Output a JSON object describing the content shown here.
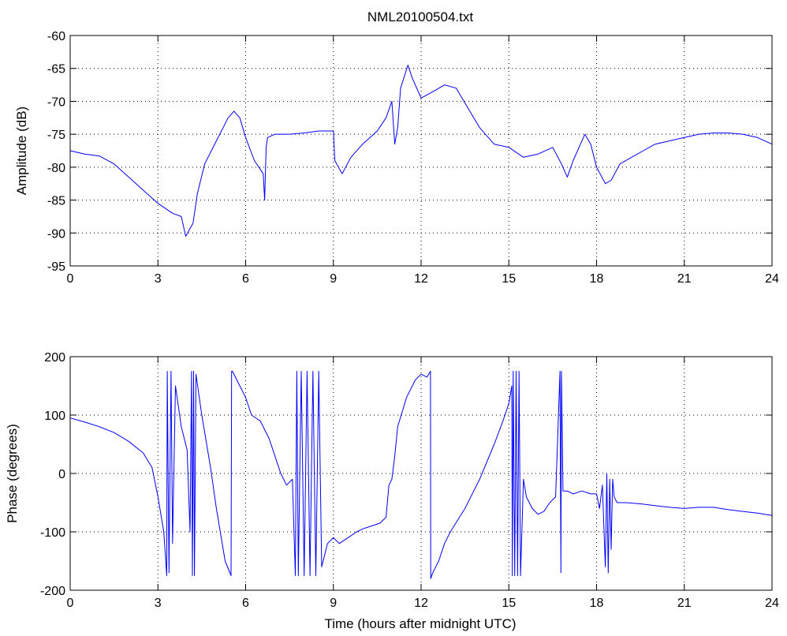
{
  "colors": {
    "trace": "#0000ff",
    "axes": "#000000",
    "background": "#ffffff"
  },
  "chart_data": [
    {
      "type": "line",
      "title": "NML20100504.txt",
      "xlabel": "",
      "ylabel": "Amplitude (dB)",
      "xlim": [
        0,
        24
      ],
      "ylim": [
        -95,
        -60
      ],
      "xticks": [
        0,
        3,
        6,
        9,
        12,
        15,
        18,
        21,
        24
      ],
      "yticks": [
        -95,
        -90,
        -85,
        -80,
        -75,
        -70,
        -65,
        -60
      ],
      "grid": true,
      "series": [
        {
          "x": [
            0,
            0.5,
            1,
            1.5,
            2,
            2.5,
            3,
            3.5,
            3.8,
            3.95,
            4.2,
            4.35,
            4.6,
            5.0,
            5.4,
            5.6,
            5.8,
            6.0,
            6.3,
            6.6,
            6.65,
            6.7,
            6.75,
            7,
            7.5,
            8,
            8.5,
            9,
            9.05,
            9.3,
            9.6,
            10,
            10.5,
            10.8,
            11,
            11.1,
            11.2,
            11.3,
            11.55,
            11.7,
            12,
            12.5,
            12.8,
            13.2,
            13.6,
            14,
            14.5,
            15,
            15.5,
            16,
            16.5,
            16.8,
            17,
            17.2,
            17.4,
            17.6,
            17.8,
            18,
            18.3,
            18.5,
            18.8,
            19.2,
            19.6,
            20,
            20.5,
            21,
            21.5,
            22,
            22.5,
            23,
            23.5,
            24
          ],
          "y": [
            -77.5,
            -78,
            -78.3,
            -79.5,
            -81.5,
            -83.5,
            -85.5,
            -87,
            -87.5,
            -90.5,
            -88.5,
            -84,
            -79.5,
            -76,
            -72.5,
            -71.5,
            -72.5,
            -75.5,
            -79,
            -81,
            -85,
            -77,
            -75.5,
            -75,
            -75,
            -74.8,
            -74.5,
            -74.5,
            -79,
            -81,
            -78.5,
            -76.5,
            -74.5,
            -72.5,
            -70,
            -76.5,
            -74,
            -68,
            -64.5,
            -66.5,
            -69.5,
            -68.3,
            -67.5,
            -68,
            -71,
            -74,
            -76.5,
            -77,
            -78.5,
            -78,
            -77,
            -79.5,
            -81.5,
            -79,
            -77,
            -75,
            -76.5,
            -80,
            -82.5,
            -82,
            -79.5,
            -78.5,
            -77.5,
            -76.5,
            -76,
            -75.5,
            -75,
            -74.8,
            -74.8,
            -75,
            -75.5,
            -76.5
          ]
        }
      ]
    },
    {
      "type": "line",
      "title": "",
      "xlabel": "Time (hours after midnight UTC)",
      "ylabel": "Phase (degrees)",
      "xlim": [
        0,
        24
      ],
      "ylim": [
        -200,
        200
      ],
      "xticks": [
        0,
        3,
        6,
        9,
        12,
        15,
        18,
        21,
        24
      ],
      "yticks": [
        -200,
        -100,
        0,
        100,
        200
      ],
      "grid": true,
      "series": [
        {
          "x": [
            0,
            0.5,
            1,
            1.5,
            2,
            2.5,
            2.8,
            3.0,
            3.2,
            3.3,
            3.32,
            3.38,
            3.45,
            3.5,
            3.6,
            3.8,
            4.0,
            4.1,
            4.15,
            4.18,
            4.22,
            4.25,
            4.3,
            4.5,
            4.8,
            5.0,
            5.3,
            5.5,
            5.52,
            5.55,
            5.8,
            6.0,
            6.2,
            6.5,
            6.8,
            7.0,
            7.2,
            7.4,
            7.6,
            7.7,
            7.75,
            7.8,
            7.9,
            8.0,
            8.1,
            8.2,
            8.3,
            8.4,
            8.5,
            8.6,
            8.7,
            8.8,
            9.0,
            9.2,
            9.5,
            9.8,
            10.0,
            10.3,
            10.6,
            10.8,
            10.9,
            11.0,
            11.1,
            11.2,
            11.5,
            11.8,
            12.0,
            12.2,
            12.32,
            12.33,
            12.4,
            12.6,
            12.8,
            13.0,
            13.5,
            14.0,
            14.5,
            14.8,
            15.0,
            15.1,
            15.12,
            15.15,
            15.2,
            15.25,
            15.3,
            15.35,
            15.4,
            15.5,
            15.6,
            15.8,
            16.0,
            16.2,
            16.4,
            16.6,
            16.75,
            16.78,
            16.8,
            16.85,
            17.0,
            17.2,
            17.5,
            17.8,
            18.0,
            18.1,
            18.2,
            18.3,
            18.35,
            18.4,
            18.45,
            18.5,
            18.55,
            18.6,
            18.7,
            19.0,
            19.5,
            20.0,
            20.5,
            21.0,
            21.5,
            22.0,
            22.5,
            23.0,
            23.5,
            24.0
          ],
          "y": [
            95,
            88,
            80,
            70,
            55,
            35,
            10,
            -40,
            -100,
            -175,
            175,
            -170,
            175,
            -120,
            150,
            80,
            40,
            -100,
            175,
            -175,
            175,
            -175,
            170,
            100,
            10,
            -60,
            -150,
            -175,
            175,
            175,
            150,
            130,
            100,
            90,
            60,
            30,
            0,
            -20,
            -10,
            -175,
            175,
            -175,
            175,
            -175,
            175,
            -175,
            175,
            -175,
            175,
            -160,
            -140,
            -120,
            -110,
            -120,
            -110,
            -100,
            -95,
            -90,
            -85,
            -75,
            -20,
            -10,
            30,
            80,
            130,
            160,
            170,
            165,
            175,
            -180,
            -170,
            -150,
            -120,
            -100,
            -60,
            -10,
            50,
            90,
            120,
            150,
            -175,
            175,
            -175,
            175,
            -175,
            175,
            -175,
            -10,
            -40,
            -60,
            -70,
            -65,
            -50,
            -40,
            175,
            -170,
            175,
            -30,
            -30,
            -35,
            -30,
            -35,
            -35,
            -60,
            -20,
            -160,
            0,
            -170,
            -10,
            -130,
            -10,
            -40,
            -50,
            -50,
            -52,
            -55,
            -58,
            -60,
            -58,
            -58,
            -62,
            -65,
            -68,
            -72
          ]
        }
      ]
    }
  ]
}
